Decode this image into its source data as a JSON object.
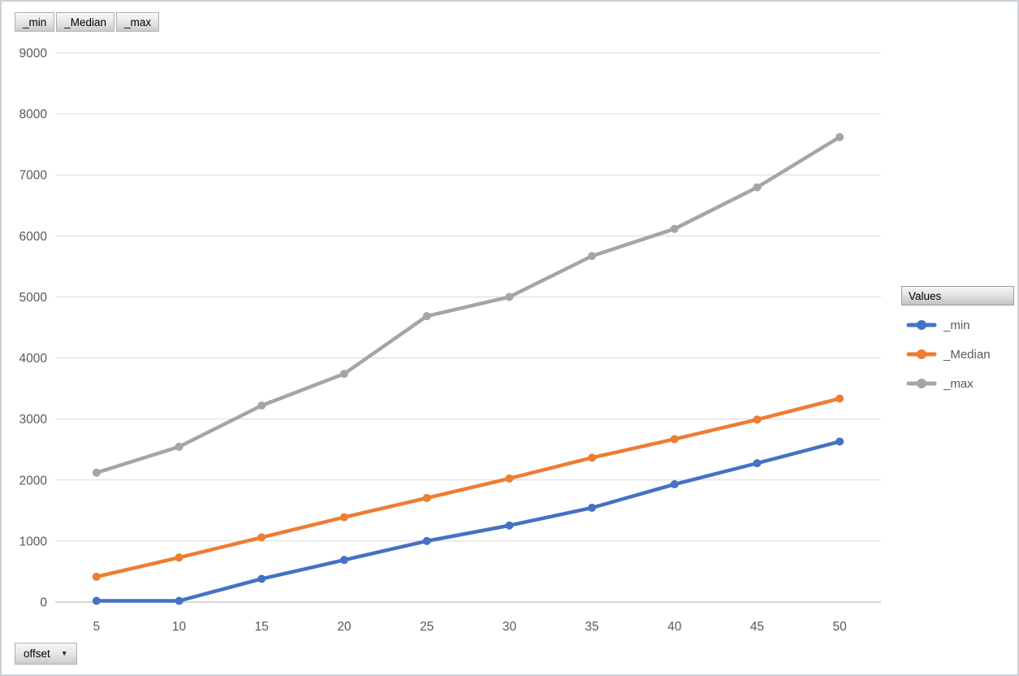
{
  "field_buttons": [
    {
      "label": "_min"
    },
    {
      "label": "_Median"
    },
    {
      "label": "_max"
    }
  ],
  "axis_field_button": {
    "label": "offset"
  },
  "icons": {
    "dropdown_arrow": "▼"
  },
  "legend": {
    "header": "Values",
    "items": [
      {
        "label": "_min",
        "color": "#4472C4"
      },
      {
        "label": "_Median",
        "color": "#ED7D31"
      },
      {
        "label": "_max",
        "color": "#A5A5A5"
      }
    ]
  },
  "colors": {
    "gridline": "#D9D9D9",
    "zero_axis_line": "#BFBFBF",
    "axis_text": "#595959",
    "series_min": "#4472C4",
    "series_median": "#ED7D31",
    "series_max": "#A5A5A5"
  },
  "chart_data": {
    "type": "line",
    "x": [
      5,
      10,
      15,
      20,
      25,
      30,
      35,
      40,
      45,
      50
    ],
    "series": [
      {
        "name": "_min",
        "color": "#4472C4",
        "values": [
          20,
          20,
          380,
          690,
          1000,
          1255,
          1545,
          1930,
          2275,
          2630
        ]
      },
      {
        "name": "_Median",
        "color": "#ED7D31",
        "values": [
          415,
          730,
          1060,
          1390,
          1705,
          2025,
          2365,
          2670,
          2990,
          3335
        ]
      },
      {
        "name": "_max",
        "color": "#A5A5A5",
        "values": [
          2120,
          2545,
          3220,
          3740,
          4685,
          5000,
          5670,
          6115,
          6795,
          7620
        ]
      }
    ],
    "title": "",
    "xlabel": "",
    "ylabel": "",
    "x_axis_field": "offset",
    "legend_title": "Values",
    "legend_position": "right",
    "grid": true,
    "ylim": [
      0,
      9000
    ],
    "ytick_step": 1000,
    "yticks": [
      0,
      1000,
      2000,
      3000,
      4000,
      5000,
      6000,
      7000,
      8000,
      9000
    ],
    "marker": "circle"
  }
}
